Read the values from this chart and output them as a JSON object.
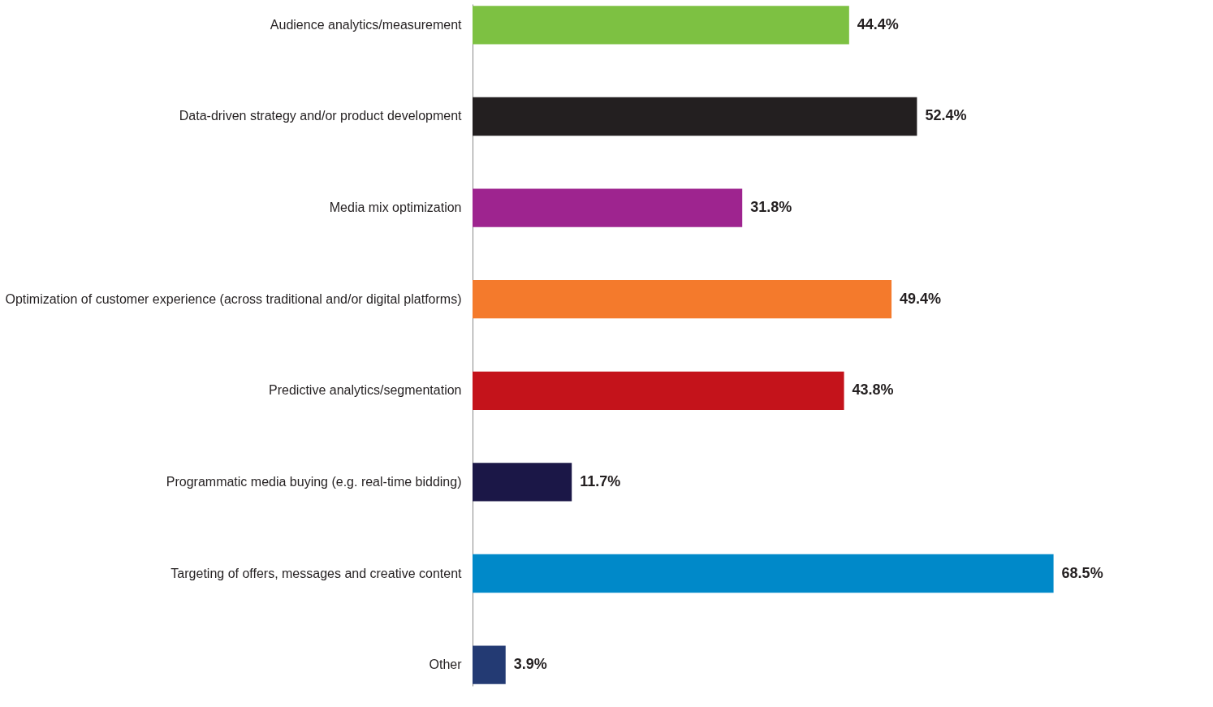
{
  "chart_data": {
    "type": "bar",
    "orientation": "horizontal",
    "categories": [
      "Audience analytics/measurement",
      "Data-driven strategy and/or product development",
      "Media mix optimization",
      "Optimization of customer experience (across traditional and/or digital platforms)",
      "Predictive analytics/segmentation",
      "Programmatic media buying (e.g. real-time bidding)",
      "Targeting of offers, messages and creative content",
      "Other"
    ],
    "values": [
      44.4,
      52.4,
      31.8,
      49.4,
      43.8,
      11.7,
      68.5,
      3.9
    ],
    "colors": [
      "#7dc142",
      "#231f20",
      "#9e248f",
      "#f47a2c",
      "#c4131b",
      "#1b1747",
      "#0089c9",
      "#233a73"
    ],
    "value_labels": [
      "44.4%",
      "52.4%",
      "31.8%",
      "49.4%",
      "43.8%",
      "11.7%",
      "68.5%",
      "3.9%"
    ]
  }
}
